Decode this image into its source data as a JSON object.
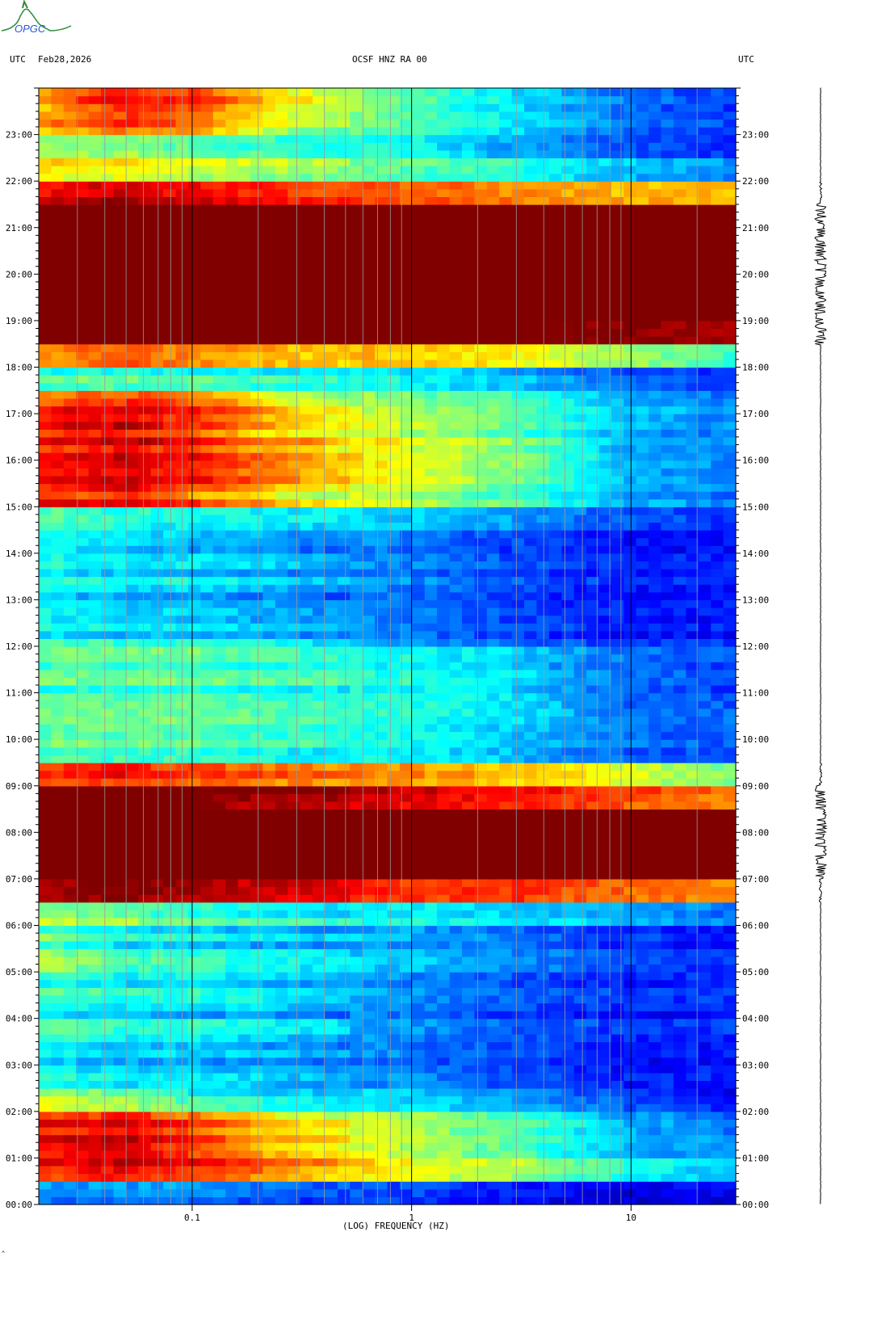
{
  "header": {
    "left_tz": "UTC",
    "date": "Feb28,2026",
    "station": "OCSF HNZ RA 00",
    "right_tz": "UTC"
  },
  "logo_text": "OPGC",
  "footer_mark": "^",
  "chart_data": {
    "type": "heatmap",
    "title": "OCSF HNZ RA 00",
    "xlabel": "(LOG) FREQUENCY (HZ)",
    "ylabel": "UTC",
    "xscale": "log",
    "xlim": [
      0.02,
      30
    ],
    "ylim_hours": [
      0,
      24
    ],
    "x_tick_labels": [
      "0.1",
      "1",
      "10"
    ],
    "x_tick_values": [
      0.1,
      1,
      10
    ],
    "y_tick_labels": [
      "00:00",
      "01:00",
      "02:00",
      "03:00",
      "04:00",
      "05:00",
      "06:00",
      "07:00",
      "08:00",
      "09:00",
      "10:00",
      "11:00",
      "12:00",
      "13:00",
      "14:00",
      "15:00",
      "16:00",
      "17:00",
      "18:00",
      "19:00",
      "20:00",
      "21:00",
      "22:00",
      "23:00"
    ],
    "intensity_anchor_freqs_hz": [
      0.02,
      0.05,
      0.1,
      0.3,
      1,
      3,
      10,
      30
    ],
    "row_interval_hours": 0.5,
    "intensity_rows_normalized": [
      [
        0.3,
        0.3,
        0.3,
        0.25,
        0.2,
        0.15,
        0.12,
        0.12
      ],
      [
        0.85,
        0.9,
        0.85,
        0.75,
        0.6,
        0.55,
        0.4,
        0.3
      ],
      [
        0.85,
        0.9,
        0.8,
        0.65,
        0.55,
        0.45,
        0.3,
        0.25
      ],
      [
        0.85,
        0.9,
        0.8,
        0.65,
        0.55,
        0.45,
        0.3,
        0.25
      ],
      [
        0.6,
        0.55,
        0.45,
        0.4,
        0.35,
        0.3,
        0.2,
        0.15
      ],
      [
        0.4,
        0.35,
        0.35,
        0.3,
        0.25,
        0.2,
        0.15,
        0.15
      ],
      [
        0.4,
        0.35,
        0.35,
        0.3,
        0.25,
        0.2,
        0.15,
        0.15
      ],
      [
        0.42,
        0.35,
        0.35,
        0.3,
        0.25,
        0.2,
        0.15,
        0.15
      ],
      [
        0.4,
        0.35,
        0.35,
        0.3,
        0.25,
        0.2,
        0.15,
        0.15
      ],
      [
        0.4,
        0.35,
        0.35,
        0.3,
        0.25,
        0.2,
        0.15,
        0.15
      ],
      [
        0.5,
        0.4,
        0.38,
        0.33,
        0.3,
        0.25,
        0.18,
        0.15
      ],
      [
        0.5,
        0.4,
        0.38,
        0.33,
        0.3,
        0.25,
        0.18,
        0.15
      ],
      [
        0.55,
        0.5,
        0.45,
        0.4,
        0.38,
        0.35,
        0.3,
        0.25
      ],
      [
        0.9,
        0.95,
        0.9,
        0.85,
        0.8,
        0.8,
        0.75,
        0.7
      ],
      [
        1,
        1,
        1,
        1,
        1,
        1,
        1,
        1
      ],
      [
        1,
        1,
        1,
        1,
        1,
        1,
        1,
        1
      ],
      [
        1,
        1,
        1,
        1,
        1,
        1,
        1,
        1
      ],
      [
        1,
        1,
        1,
        0.95,
        0.9,
        0.85,
        0.8,
        0.75
      ],
      [
        0.85,
        0.9,
        0.85,
        0.8,
        0.75,
        0.7,
        0.6,
        0.5
      ],
      [
        0.45,
        0.45,
        0.45,
        0.4,
        0.38,
        0.32,
        0.22,
        0.2
      ],
      [
        0.45,
        0.45,
        0.45,
        0.4,
        0.38,
        0.32,
        0.22,
        0.2
      ],
      [
        0.45,
        0.45,
        0.45,
        0.42,
        0.4,
        0.35,
        0.22,
        0.2
      ],
      [
        0.45,
        0.45,
        0.45,
        0.42,
        0.4,
        0.35,
        0.22,
        0.2
      ],
      [
        0.45,
        0.45,
        0.45,
        0.4,
        0.38,
        0.32,
        0.22,
        0.2
      ],
      [
        0.4,
        0.35,
        0.35,
        0.3,
        0.25,
        0.2,
        0.15,
        0.15
      ],
      [
        0.4,
        0.35,
        0.35,
        0.3,
        0.25,
        0.2,
        0.15,
        0.15
      ],
      [
        0.4,
        0.35,
        0.35,
        0.3,
        0.25,
        0.2,
        0.15,
        0.15
      ],
      [
        0.4,
        0.35,
        0.35,
        0.3,
        0.25,
        0.2,
        0.15,
        0.15
      ],
      [
        0.42,
        0.38,
        0.35,
        0.3,
        0.25,
        0.2,
        0.15,
        0.15
      ],
      [
        0.45,
        0.4,
        0.38,
        0.35,
        0.32,
        0.28,
        0.2,
        0.17
      ],
      [
        0.85,
        0.9,
        0.8,
        0.65,
        0.55,
        0.45,
        0.3,
        0.25
      ],
      [
        0.85,
        0.9,
        0.85,
        0.7,
        0.6,
        0.5,
        0.3,
        0.25
      ],
      [
        0.85,
        0.9,
        0.85,
        0.7,
        0.6,
        0.5,
        0.3,
        0.25
      ],
      [
        0.85,
        0.9,
        0.8,
        0.65,
        0.55,
        0.45,
        0.3,
        0.25
      ],
      [
        0.8,
        0.85,
        0.8,
        0.6,
        0.5,
        0.45,
        0.3,
        0.25
      ],
      [
        0.45,
        0.45,
        0.45,
        0.4,
        0.38,
        0.32,
        0.22,
        0.2
      ],
      [
        0.8,
        0.85,
        0.8,
        0.75,
        0.7,
        0.65,
        0.55,
        0.45
      ],
      [
        1,
        1,
        1,
        1,
        1,
        1,
        0.98,
        0.95
      ],
      [
        1,
        1,
        1,
        1,
        1,
        1,
        1,
        1
      ],
      [
        1,
        1,
        1,
        1,
        1,
        1,
        1,
        1
      ],
      [
        1,
        1,
        1,
        1,
        1,
        1,
        1,
        1
      ],
      [
        1,
        1,
        1,
        1,
        1,
        1,
        1,
        1
      ],
      [
        1,
        1,
        1,
        1,
        1,
        1,
        1,
        1
      ],
      [
        0.9,
        0.95,
        0.9,
        0.85,
        0.8,
        0.75,
        0.7,
        0.7
      ],
      [
        0.6,
        0.6,
        0.55,
        0.5,
        0.45,
        0.4,
        0.3,
        0.25
      ],
      [
        0.55,
        0.55,
        0.5,
        0.45,
        0.4,
        0.3,
        0.22,
        0.18
      ],
      [
        0.7,
        0.8,
        0.75,
        0.55,
        0.45,
        0.35,
        0.22,
        0.18
      ],
      [
        0.7,
        0.85,
        0.8,
        0.6,
        0.45,
        0.35,
        0.22,
        0.18
      ]
    ],
    "colormap": "jet",
    "grid": true
  }
}
